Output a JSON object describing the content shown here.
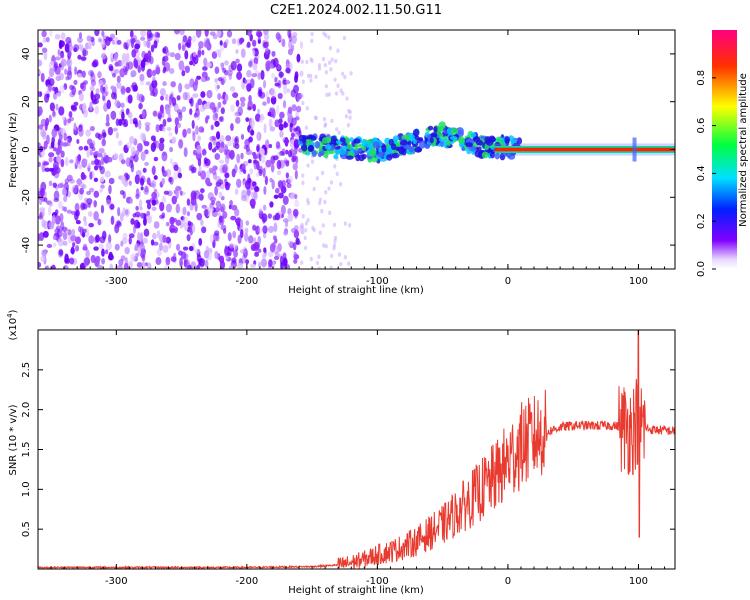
{
  "title": "C2E1.2024.002.11.50.G11",
  "colors": {
    "spectrogram_low": "#7f00ff",
    "spectrogram_high": "#ff0000",
    "snr_line": "#e83a2e"
  },
  "chart_data": [
    {
      "type": "heatmap",
      "name": "spectrogram",
      "xlabel": "Height of straight line (km)",
      "ylabel": "Frequency (Hz)",
      "xlim": [
        -360,
        128
      ],
      "ylim": [
        -50,
        50
      ],
      "xticks": [
        "-300",
        "-200",
        "-100",
        "0",
        "100"
      ],
      "xtick_values": [
        -300,
        -200,
        -100,
        0,
        100
      ],
      "yticks": [
        "-40",
        "-20",
        "0",
        "20",
        "40"
      ],
      "ytick_values": [
        -40,
        -20,
        0,
        20,
        40
      ],
      "colorbar": {
        "label": "Normalized spectral amplitude",
        "range": [
          0.0,
          1.0
        ],
        "ticks": [
          "0.0",
          "0.2",
          "0.4",
          "0.6",
          "0.8"
        ],
        "tick_values": [
          0.0,
          0.2,
          0.4,
          0.6,
          0.8
        ]
      },
      "features": [
        {
          "description": "broadband noise",
          "x_range": [
            -360,
            -158
          ],
          "amplitude": 0.1
        },
        {
          "description": "sparse noise",
          "x_range": [
            -158,
            -120
          ],
          "amplitude": 0.05
        },
        {
          "description": "signal band",
          "x_range": [
            -158,
            10
          ],
          "freq_center": 2,
          "amplitude": 0.4
        },
        {
          "description": "carrier line",
          "x_range": [
            -10,
            128
          ],
          "freq_center": 0,
          "amplitude": 0.95
        }
      ]
    },
    {
      "type": "line",
      "name": "snr",
      "xlabel": "Height of straight line (km)",
      "ylabel": "SNR (10 * v/v)",
      "y_multiplier": "(x10^4)",
      "xlim": [
        -360,
        128
      ],
      "ylim": [
        0,
        3.0
      ],
      "xticks": [
        "-300",
        "-200",
        "-100",
        "0",
        "100"
      ],
      "xtick_values": [
        -300,
        -200,
        -100,
        0,
        100
      ],
      "yticks": [
        "0.5",
        "1.0",
        "1.5",
        "2.0",
        "2.5"
      ],
      "ytick_values": [
        0.5,
        1.0,
        1.5,
        2.0,
        2.5
      ],
      "series": [
        {
          "x": [
            -360,
            -300,
            -200,
            -150,
            -130,
            -120,
            -110,
            -100,
            -90,
            -80,
            -70,
            -60,
            -50,
            -40,
            -30,
            -20,
            -10,
            0,
            10,
            20,
            30,
            40,
            50,
            60,
            70,
            80,
            90,
            95,
            100,
            105,
            110,
            120,
            128
          ],
          "values": [
            0.02,
            0.02,
            0.02,
            0.03,
            0.05,
            0.08,
            0.12,
            0.18,
            0.22,
            0.28,
            0.35,
            0.45,
            0.55,
            0.7,
            0.85,
            1.0,
            1.15,
            1.35,
            1.55,
            1.65,
            1.72,
            1.78,
            1.8,
            1.8,
            1.8,
            1.8,
            1.78,
            1.75,
            1.9,
            1.77,
            1.75,
            1.74,
            1.73
          ]
        }
      ]
    }
  ]
}
